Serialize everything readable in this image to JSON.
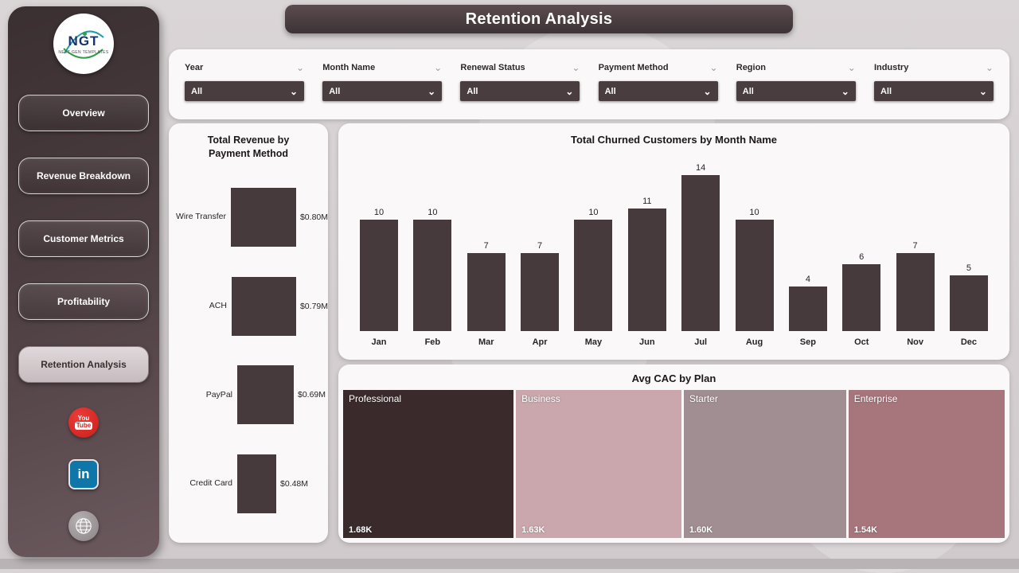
{
  "header": {
    "title": "Retention Analysis"
  },
  "sidebar": {
    "logo": {
      "text": "NGT",
      "subtext": "NEXT GEN TEMPLATES"
    },
    "items": [
      {
        "label": "Overview",
        "active": false
      },
      {
        "label": "Revenue Breakdown",
        "active": false
      },
      {
        "label": "Customer Metrics",
        "active": false
      },
      {
        "label": "Profitability",
        "active": false
      },
      {
        "label": "Retention Analysis",
        "active": true
      }
    ],
    "social_icons": [
      "youtube-icon",
      "linkedin-icon",
      "web-icon"
    ]
  },
  "filters": [
    {
      "label": "Year",
      "value": "All"
    },
    {
      "label": "Month Name",
      "value": "All"
    },
    {
      "label": "Renewal Status",
      "value": "All"
    },
    {
      "label": "Payment Method",
      "value": "All"
    },
    {
      "label": "Region",
      "value": "All"
    },
    {
      "label": "Industry",
      "value": "All"
    }
  ],
  "chart_data": [
    {
      "type": "bar",
      "orientation": "horizontal",
      "title": "Total Revenue by Payment Method",
      "categories": [
        "Wire Transfer",
        "ACH",
        "PayPal",
        "Credit Card"
      ],
      "values": [
        0.8,
        0.79,
        0.69,
        0.48
      ],
      "labels": [
        "$0.80M",
        "$0.79M",
        "$0.69M",
        "$0.48M"
      ],
      "xlim": [
        0,
        0.9
      ],
      "bar_color": "#473a3d"
    },
    {
      "type": "bar",
      "orientation": "vertical",
      "title": "Total Churned Customers by Month Name",
      "categories": [
        "Jan",
        "Feb",
        "Mar",
        "Apr",
        "May",
        "Jun",
        "Jul",
        "Aug",
        "Sep",
        "Oct",
        "Nov",
        "Dec"
      ],
      "values": [
        10,
        10,
        7,
        7,
        10,
        11,
        14,
        10,
        4,
        6,
        7,
        5
      ],
      "ylim": [
        0,
        14
      ],
      "bar_color": "#473a3d"
    },
    {
      "type": "treemap",
      "title": "Avg CAC by Plan",
      "categories": [
        "Professional",
        "Business",
        "Starter",
        "Enterprise"
      ],
      "values": [
        1.68,
        1.63,
        1.6,
        1.54
      ],
      "labels": [
        "1.68K",
        "1.63K",
        "1.60K",
        "1.54K"
      ],
      "colors": [
        "#3a2a2c",
        "#c9a7ac",
        "#a18e92",
        "#a7757c"
      ]
    }
  ],
  "colors": {
    "page_bg": "#d6d1d2",
    "card_bg": "#faf8f8",
    "sidebar_dark": "#3a2f31",
    "accent_dark": "#4a3d40",
    "bar": "#473a3d",
    "youtube_red": "#d6221f",
    "linkedin_blue": "#0e76a8"
  }
}
